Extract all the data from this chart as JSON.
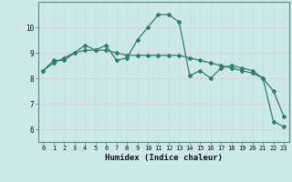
{
  "xlabel": "Humidex (Indice chaleur)",
  "ylabel": "",
  "bg_color": "#cce8e8",
  "plot_bg_color": "#cce8e8",
  "line_color": "#2e7d6e",
  "grid_color_h": "#e8c8c8",
  "grid_color_v": "#c8e0e0",
  "x_data": [
    0,
    1,
    2,
    3,
    4,
    5,
    6,
    7,
    8,
    9,
    10,
    11,
    12,
    13,
    14,
    15,
    16,
    17,
    18,
    19,
    20,
    21,
    22,
    23
  ],
  "line1_y": [
    8.3,
    8.7,
    8.7,
    9.0,
    9.3,
    9.1,
    9.3,
    8.7,
    8.8,
    9.5,
    10.0,
    10.5,
    10.5,
    10.2,
    8.1,
    8.3,
    8.0,
    8.4,
    8.5,
    8.4,
    8.3,
    8.0,
    6.3,
    6.1
  ],
  "line2_y": [
    8.3,
    8.6,
    8.8,
    9.0,
    9.1,
    9.1,
    9.1,
    9.0,
    8.9,
    8.9,
    8.9,
    8.9,
    8.9,
    8.9,
    8.8,
    8.7,
    8.6,
    8.5,
    8.4,
    8.3,
    8.2,
    8.0,
    7.5,
    6.5
  ],
  "ylim": [
    5.5,
    11.0
  ],
  "yticks": [
    6,
    7,
    8,
    9,
    10
  ],
  "xlim": [
    -0.5,
    23.5
  ],
  "tick_fontsize": 5.0,
  "xlabel_fontsize": 6.5
}
